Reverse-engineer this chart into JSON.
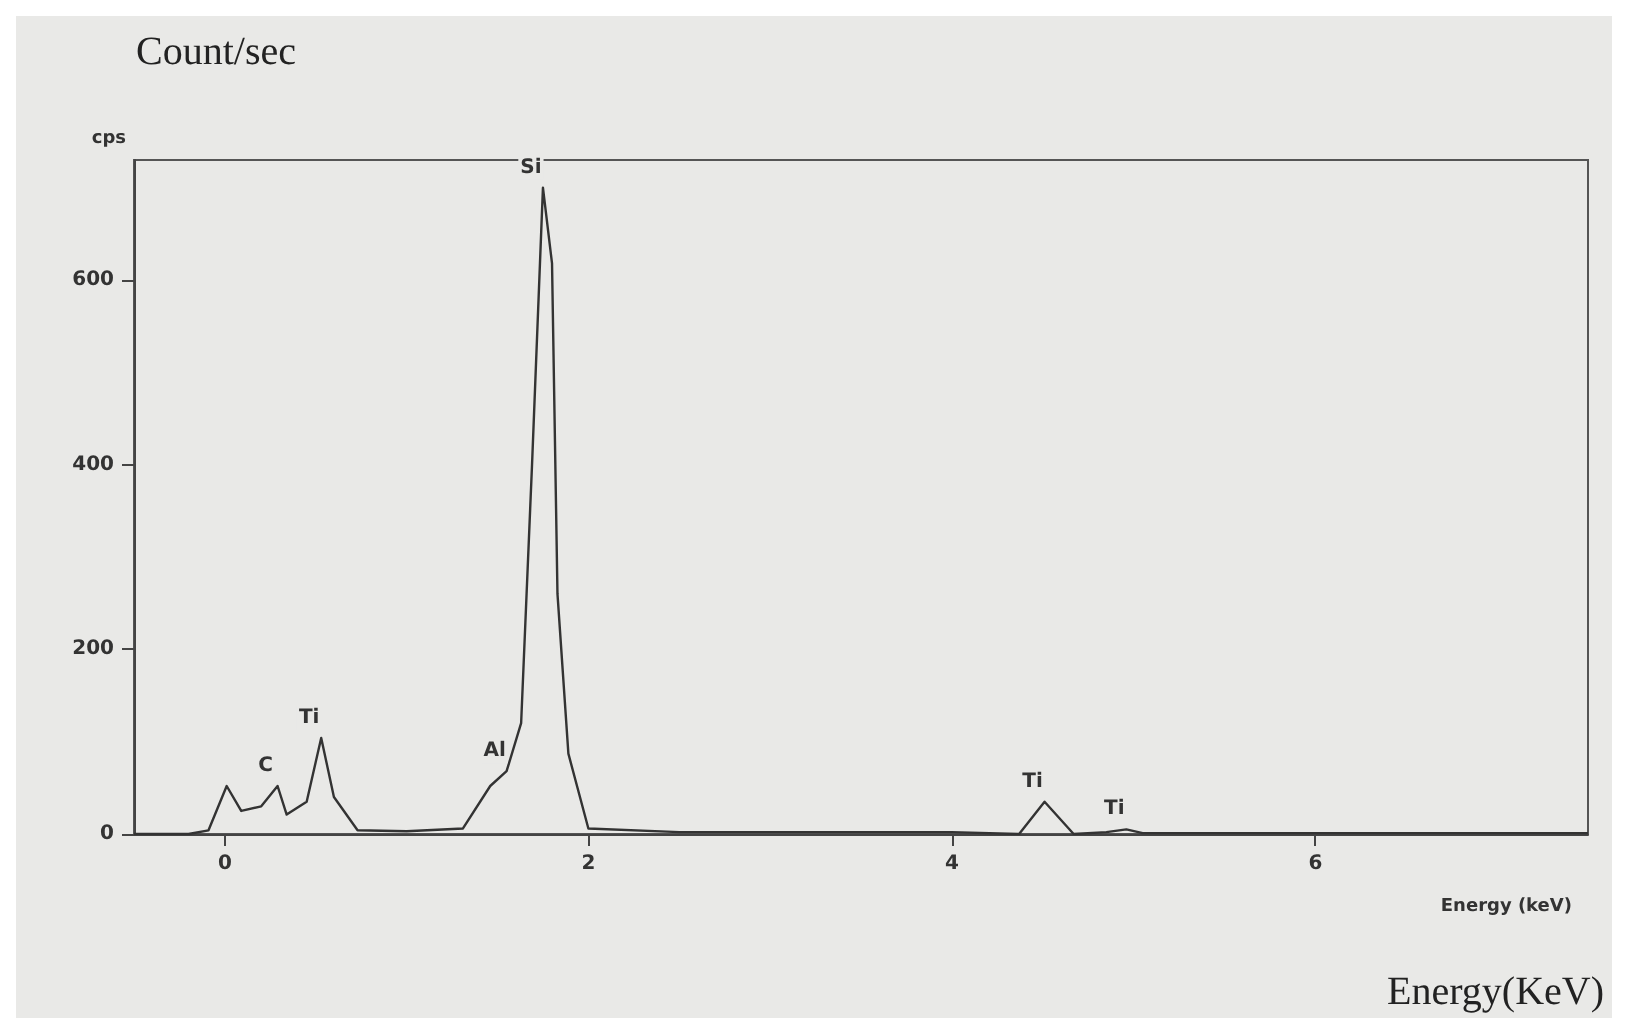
{
  "chart_data": {
    "type": "line",
    "xlabel": "Energy (keV)",
    "ylabel": "cps",
    "x": [
      -0.5,
      -0.2,
      -0.09,
      0.01,
      0.09,
      0.2,
      0.29,
      0.34,
      0.45,
      0.53,
      0.6,
      0.73,
      1.0,
      1.31,
      1.46,
      1.55,
      1.63,
      1.69,
      1.75,
      1.8,
      1.83,
      1.89,
      2.0,
      2.5,
      3.0,
      3.5,
      4.0,
      4.37,
      4.51,
      4.67,
      4.85,
      4.96,
      5.05,
      5.5,
      6.0,
      6.5,
      7.0,
      7.5
    ],
    "series": [
      {
        "color": "#333333",
        "values": [
          0,
          0,
          4,
          52,
          25,
          30,
          52,
          21,
          35,
          104,
          40,
          4,
          3,
          6,
          52,
          68,
          120,
          400,
          700,
          618,
          260,
          87,
          6,
          2,
          2,
          2,
          2,
          0,
          35,
          0,
          2,
          5,
          1,
          1,
          1,
          1,
          1,
          1
        ]
      }
    ],
    "xlim": [
      -0.5,
      7.5
    ],
    "xticks": [
      0,
      2,
      4,
      6
    ],
    "ylim": [
      0,
      730
    ],
    "yticks": [
      0,
      200,
      400,
      600
    ],
    "grid": false,
    "marker": "none",
    "line_style": "solid",
    "annotations": [
      "Count/sec",
      "Energy(KeV)",
      {
        "text": "Si",
        "x": 1.75,
        "y": 700
      },
      {
        "text": "C",
        "x": 0.29,
        "y": 52
      },
      {
        "text": "Ti",
        "x": 0.53,
        "y": 104
      },
      {
        "text": "Al",
        "x": 1.55,
        "y": 68
      },
      {
        "text": "Ti",
        "x": 4.51,
        "y": 35
      },
      {
        "text": "Ti",
        "x": 4.96,
        "y": 5
      }
    ]
  }
}
